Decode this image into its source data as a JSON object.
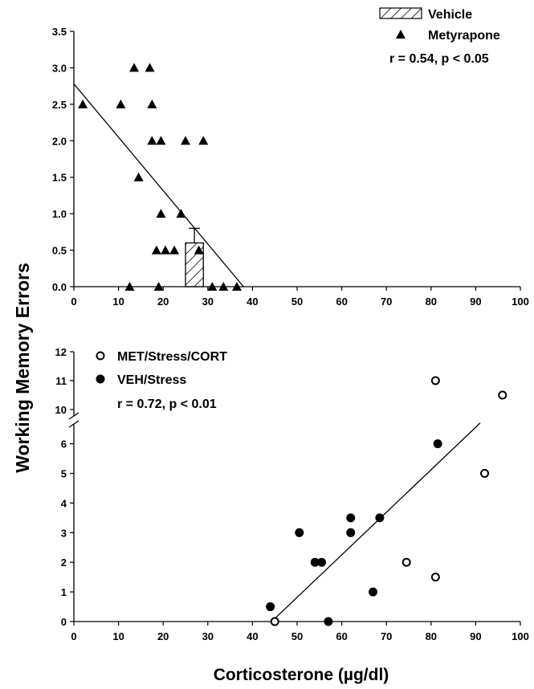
{
  "figure": {
    "ylabel": "Working Memory Errors",
    "xlabel": "Corticosterone (µg/dl)"
  },
  "chart_data": [
    {
      "type": "scatter",
      "title": "",
      "xlim": [
        0,
        100
      ],
      "ylim": [
        0,
        3.5
      ],
      "x_ticks": [
        0,
        10,
        20,
        30,
        40,
        50,
        60,
        70,
        80,
        90,
        100
      ],
      "y_ticks": [
        "0.0",
        "0.5",
        "1.0",
        "1.5",
        "2.0",
        "2.5",
        "3.0",
        "3.5"
      ],
      "bar": {
        "name": "Vehicle",
        "x": 27,
        "x_range": [
          25,
          29
        ],
        "value": 0.6,
        "error_upper": 0.8,
        "pattern": "hatched"
      },
      "series": [
        {
          "name": "Metyrapone",
          "marker": "filled-triangle",
          "points": [
            [
              2,
              2.5
            ],
            [
              10.5,
              2.5
            ],
            [
              13.5,
              3.0
            ],
            [
              17,
              3.0
            ],
            [
              17.5,
              2.5
            ],
            [
              17.5,
              2.0
            ],
            [
              19.5,
              2.0
            ],
            [
              25,
              2.0
            ],
            [
              29,
              2.0
            ],
            [
              14.5,
              1.5
            ],
            [
              19.5,
              1.0
            ],
            [
              24,
              1.0
            ],
            [
              18.5,
              0.5
            ],
            [
              20.5,
              0.5
            ],
            [
              22.5,
              0.5
            ],
            [
              28,
              0.5
            ],
            [
              12.5,
              0.0
            ],
            [
              19,
              0.0
            ],
            [
              31,
              0.0
            ],
            [
              33.5,
              0.0
            ],
            [
              36.5,
              0.0
            ]
          ]
        }
      ],
      "fit_line": {
        "x": [
          0,
          38
        ],
        "y": [
          2.78,
          0.0
        ]
      },
      "stats": "r = 0.54,  p <  0.05",
      "legend_position": "top-right"
    },
    {
      "type": "scatter",
      "title": "",
      "xlim": [
        0,
        100
      ],
      "ylim": [
        0,
        12
      ],
      "axis_break": [
        6.8,
        10
      ],
      "x_ticks": [
        0,
        10,
        20,
        30,
        40,
        50,
        60,
        70,
        80,
        90,
        100
      ],
      "y_ticks": [
        "0",
        "1",
        "2",
        "3",
        "4",
        "5",
        "6",
        "10",
        "11",
        "12"
      ],
      "series": [
        {
          "name": "MET/Stress/CORT",
          "marker": "open-circle",
          "points": [
            [
              45,
              0.0
            ],
            [
              74.5,
              2.0
            ],
            [
              81,
              1.5
            ],
            [
              81,
              11.0
            ],
            [
              92,
              5.0
            ],
            [
              96,
              10.5
            ]
          ]
        },
        {
          "name": "VEH/Stress",
          "marker": "filled-circle",
          "points": [
            [
              44,
              0.5
            ],
            [
              50.5,
              3.0
            ],
            [
              54,
              2.0
            ],
            [
              55.5,
              2.0
            ],
            [
              57,
              0.0
            ],
            [
              62,
              3.5
            ],
            [
              62,
              3.0
            ],
            [
              67,
              1.0
            ],
            [
              68.5,
              3.5
            ],
            [
              81.5,
              6.0
            ]
          ]
        }
      ],
      "fit_line": {
        "x": [
          45,
          91
        ],
        "y": [
          0.1,
          6.7
        ]
      },
      "stats": "r = 0.72, p < 0.01",
      "legend_position": "top-left"
    }
  ],
  "colors": {
    "ink": "#000000",
    "background": "#ffffff"
  }
}
